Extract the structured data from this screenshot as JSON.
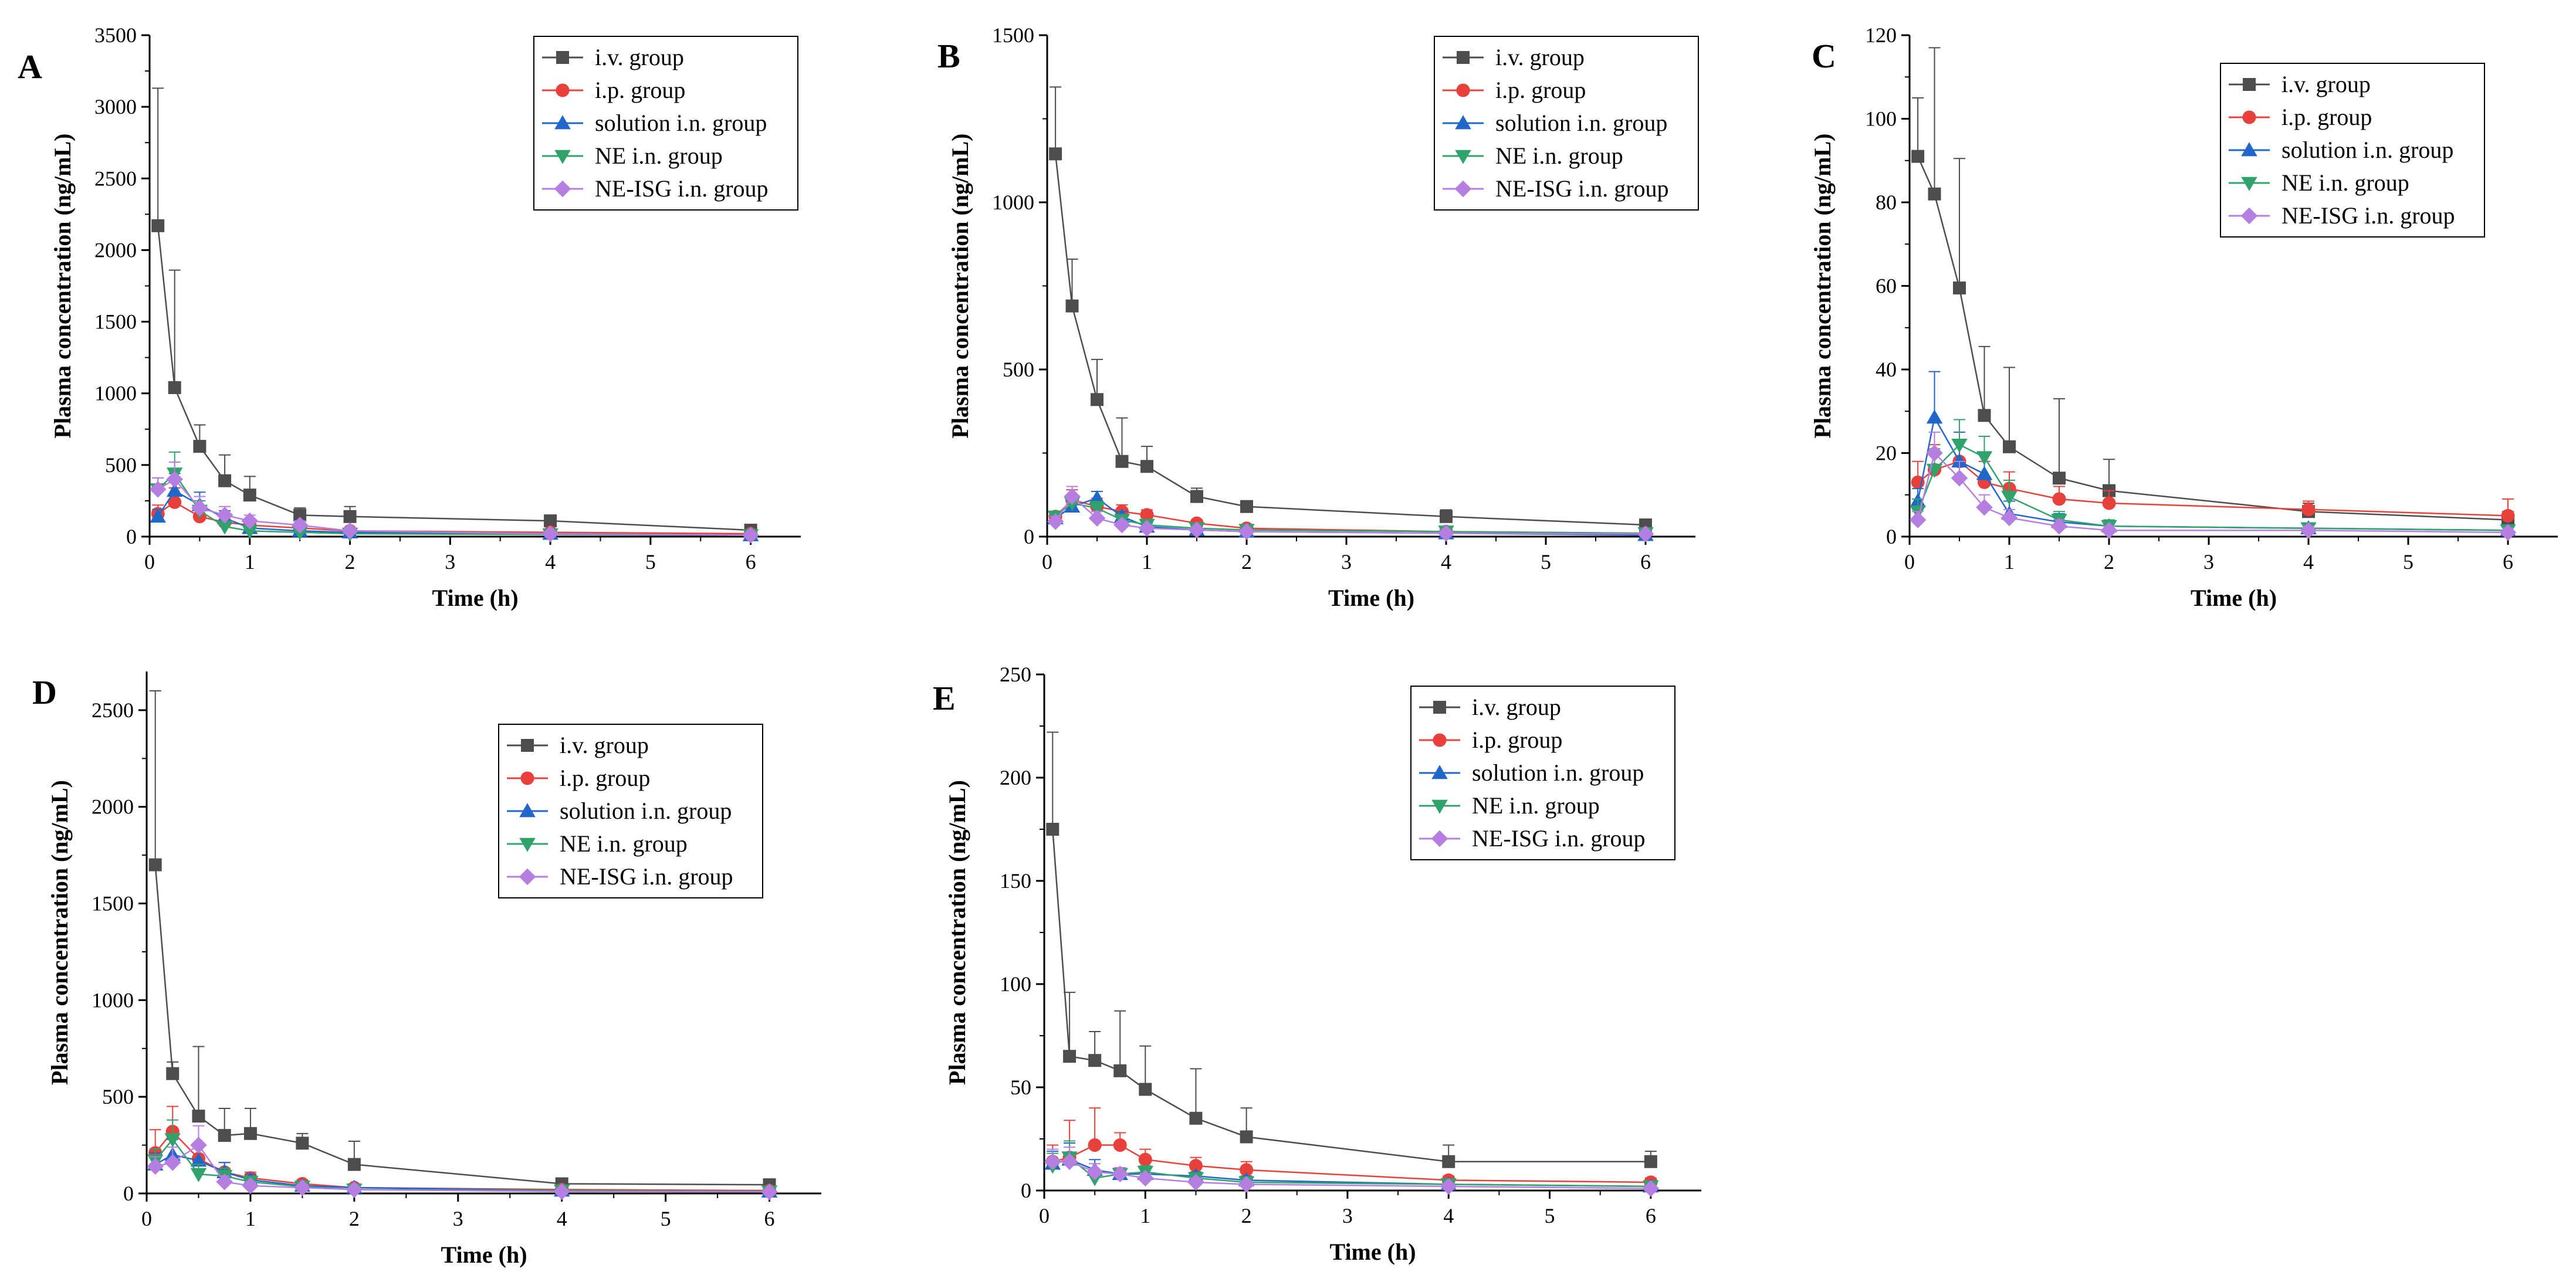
{
  "figure": {
    "series_styles": [
      {
        "name": "i.v. group",
        "color": "#4d4d4d",
        "marker": "square"
      },
      {
        "name": "i.p. group",
        "color": "#e8413c",
        "marker": "circle"
      },
      {
        "name": "solution i.n. group",
        "color": "#2166c9",
        "marker": "triangle-up"
      },
      {
        "name": "NE i.n. group",
        "color": "#2fa36b",
        "marker": "triangle-down"
      },
      {
        "name": "NE-ISG i.n. group",
        "color": "#b57ee0",
        "marker": "diamond"
      }
    ]
  },
  "chart_data": [
    {
      "panel": "A",
      "type": "line",
      "xlabel": "Time (h)",
      "ylabel": "Plasma concentration (ng/mL)",
      "xlim": [
        0,
        6.5
      ],
      "xticks": [
        0,
        1,
        2,
        3,
        4,
        5,
        6
      ],
      "ylim": [
        0,
        3500
      ],
      "yticks": [
        0,
        500,
        1000,
        1500,
        2000,
        2500,
        3000,
        3500
      ],
      "legend_position": "top-right",
      "x": [
        0.083,
        0.25,
        0.5,
        0.75,
        1,
        1.5,
        2,
        4,
        6
      ],
      "series": [
        {
          "name": "i.v. group",
          "values": [
            2170,
            1040,
            630,
            390,
            290,
            150,
            140,
            110,
            45
          ],
          "errors": [
            960,
            820,
            150,
            180,
            130,
            50,
            70,
            30,
            15
          ]
        },
        {
          "name": "i.p. group",
          "values": [
            160,
            240,
            140,
            100,
            80,
            60,
            40,
            30,
            20
          ],
          "errors": [
            60,
            100,
            50,
            40,
            30,
            20,
            15,
            10,
            8
          ]
        },
        {
          "name": "solution i.n. group",
          "values": [
            140,
            320,
            220,
            130,
            60,
            40,
            30,
            20,
            10
          ],
          "errors": [
            50,
            120,
            90,
            50,
            30,
            20,
            15,
            10,
            5
          ]
        },
        {
          "name": "NE i.n. group",
          "values": [
            330,
            440,
            180,
            70,
            40,
            30,
            20,
            15,
            10
          ],
          "errors": [
            80,
            150,
            70,
            30,
            20,
            15,
            10,
            8,
            5
          ]
        },
        {
          "name": "NE-ISG i.n. group",
          "values": [
            330,
            400,
            200,
            150,
            110,
            80,
            40,
            20,
            10
          ],
          "errors": [
            80,
            120,
            80,
            60,
            40,
            30,
            20,
            10,
            5
          ]
        }
      ]
    },
    {
      "panel": "B",
      "type": "line",
      "xlabel": "Time (h)",
      "ylabel": "Plasma concentration (ng/mL)",
      "xlim": [
        0,
        6.5
      ],
      "xticks": [
        0,
        1,
        2,
        3,
        4,
        5,
        6
      ],
      "ylim": [
        0,
        1500
      ],
      "yticks": [
        0,
        500,
        1000,
        1500
      ],
      "legend_position": "top-right",
      "x": [
        0.083,
        0.25,
        0.5,
        0.75,
        1,
        1.5,
        2,
        4,
        6
      ],
      "series": [
        {
          "name": "i.v. group",
          "values": [
            1145,
            690,
            410,
            225,
            210,
            120,
            90,
            60,
            35
          ],
          "errors": [
            200,
            140,
            120,
            130,
            60,
            25,
            15,
            20,
            10
          ]
        },
        {
          "name": "i.p. group",
          "values": [
            60,
            110,
            90,
            75,
            65,
            40,
            25,
            15,
            10
          ],
          "errors": [
            15,
            30,
            25,
            20,
            15,
            10,
            8,
            5,
            4
          ]
        },
        {
          "name": "solution i.n. group",
          "values": [
            55,
            90,
            115,
            60,
            30,
            20,
            15,
            10,
            5
          ],
          "errors": [
            15,
            25,
            20,
            15,
            10,
            8,
            5,
            4,
            3
          ]
        },
        {
          "name": "NE i.n. group",
          "values": [
            60,
            100,
            85,
            50,
            35,
            25,
            20,
            15,
            10
          ],
          "errors": [
            15,
            25,
            20,
            15,
            10,
            8,
            5,
            4,
            3
          ]
        },
        {
          "name": "NE-ISG i.n. group",
          "values": [
            45,
            120,
            55,
            35,
            25,
            20,
            15,
            10,
            8
          ],
          "errors": [
            15,
            30,
            20,
            10,
            8,
            6,
            5,
            4,
            3
          ]
        }
      ]
    },
    {
      "panel": "C",
      "type": "line",
      "xlabel": "Time (h)",
      "ylabel": "Plasma concentration (ng/mL)",
      "xlim": [
        0,
        6.5
      ],
      "xticks": [
        0,
        1,
        2,
        3,
        4,
        5,
        6
      ],
      "ylim": [
        0,
        120
      ],
      "yticks": [
        0,
        20,
        40,
        60,
        80,
        100,
        120
      ],
      "legend_position": "top-right",
      "x": [
        0.083,
        0.25,
        0.5,
        0.75,
        1,
        1.5,
        2,
        4,
        6
      ],
      "series": [
        {
          "name": "i.v. group",
          "values": [
            91,
            82,
            59.5,
            29,
            21.5,
            14,
            11,
            6,
            4
          ],
          "errors": [
            14,
            35,
            31,
            16.5,
            19,
            19,
            7.5,
            2,
            2
          ]
        },
        {
          "name": "i.p. group",
          "values": [
            13,
            16,
            18,
            13,
            11.5,
            9,
            8,
            6.5,
            5
          ],
          "errors": [
            5,
            6,
            10,
            5,
            4,
            3,
            3,
            2,
            4
          ]
        },
        {
          "name": "solution i.n. group",
          "values": [
            8.5,
            28.5,
            18,
            15,
            5.5,
            3.5,
            2.5,
            2,
            1.5
          ],
          "errors": [
            3,
            11,
            7,
            5,
            3,
            2,
            1.5,
            1,
            1
          ]
        },
        {
          "name": "NE i.n. group",
          "values": [
            6,
            16,
            22,
            19,
            9.5,
            4,
            2.5,
            2,
            1.5
          ],
          "errors": [
            3,
            5,
            6,
            5,
            4,
            2,
            1.5,
            1,
            1
          ]
        },
        {
          "name": "NE-ISG i.n. group",
          "values": [
            4,
            20,
            14,
            7,
            4.5,
            2.5,
            1.5,
            1.5,
            1
          ],
          "errors": [
            2,
            5,
            4,
            3,
            2,
            1.5,
            1,
            1,
            1
          ]
        }
      ]
    },
    {
      "panel": "D",
      "type": "line",
      "xlabel": "Time (h)",
      "ylabel": "Plasma concentration (ng/mL)",
      "xlim": [
        0,
        6.5
      ],
      "xticks": [
        0,
        1,
        2,
        3,
        4,
        5,
        6
      ],
      "ylim": [
        0,
        2700
      ],
      "yticks": [
        0,
        500,
        1000,
        1500,
        2000,
        2500
      ],
      "legend_position": "top-right",
      "x": [
        0.083,
        0.25,
        0.5,
        0.75,
        1,
        1.5,
        2,
        4,
        6
      ],
      "series": [
        {
          "name": "i.v. group",
          "values": [
            1700,
            620,
            400,
            300,
            310,
            260,
            150,
            50,
            45
          ],
          "errors": [
            900,
            60,
            360,
            140,
            130,
            50,
            120,
            15,
            10
          ]
        },
        {
          "name": "i.p. group",
          "values": [
            210,
            320,
            180,
            110,
            80,
            50,
            30,
            20,
            15
          ],
          "errors": [
            120,
            130,
            80,
            50,
            30,
            20,
            15,
            10,
            8
          ]
        },
        {
          "name": "solution i.n. group",
          "values": [
            150,
            200,
            170,
            110,
            70,
            40,
            30,
            15,
            10
          ],
          "errors": [
            60,
            80,
            70,
            50,
            30,
            20,
            15,
            8,
            5
          ]
        },
        {
          "name": "NE i.n. group",
          "values": [
            170,
            280,
            100,
            90,
            60,
            35,
            20,
            15,
            10
          ],
          "errors": [
            60,
            100,
            50,
            40,
            25,
            15,
            10,
            8,
            5
          ]
        },
        {
          "name": "NE-ISG i.n. group",
          "values": [
            140,
            160,
            250,
            60,
            40,
            30,
            20,
            10,
            8
          ],
          "errors": [
            50,
            80,
            100,
            30,
            20,
            15,
            10,
            6,
            4
          ]
        }
      ]
    },
    {
      "panel": "E",
      "type": "line",
      "xlabel": "Time (h)",
      "ylabel": "Plasma concentration (ng/mL)",
      "xlim": [
        0,
        6.5
      ],
      "xticks": [
        0,
        1,
        2,
        3,
        4,
        5,
        6
      ],
      "ylim": [
        0,
        250
      ],
      "yticks": [
        0,
        50,
        100,
        150,
        200,
        250
      ],
      "legend_position": "top-right",
      "x": [
        0.083,
        0.25,
        0.5,
        0.75,
        1,
        1.5,
        2,
        4,
        6
      ],
      "series": [
        {
          "name": "i.v. group",
          "values": [
            175,
            65,
            63,
            58,
            49,
            35,
            26,
            14,
            14
          ],
          "errors": [
            47,
            31,
            14,
            29,
            21,
            24,
            14,
            8,
            5
          ]
        },
        {
          "name": "i.p. group",
          "values": [
            14,
            16,
            22,
            22,
            15,
            12,
            10,
            5,
            4
          ],
          "errors": [
            8,
            18,
            18,
            6,
            5,
            4,
            4,
            2,
            2
          ]
        },
        {
          "name": "solution i.n. group",
          "values": [
            13,
            15,
            10,
            8,
            8,
            7,
            5,
            3,
            2
          ],
          "errors": [
            6,
            8,
            5,
            3,
            3,
            2,
            2,
            1,
            1
          ]
        },
        {
          "name": "NE i.n. group",
          "values": [
            12,
            16,
            6,
            8,
            9,
            6,
            4,
            3,
            2
          ],
          "errors": [
            6,
            8,
            4,
            3,
            3,
            2,
            2,
            1,
            1
          ]
        },
        {
          "name": "NE-ISG i.n. group",
          "values": [
            14,
            14,
            9,
            8,
            6,
            4,
            3,
            2,
            1
          ],
          "errors": [
            6,
            7,
            4,
            3,
            2,
            2,
            1,
            1,
            1
          ]
        }
      ]
    }
  ]
}
